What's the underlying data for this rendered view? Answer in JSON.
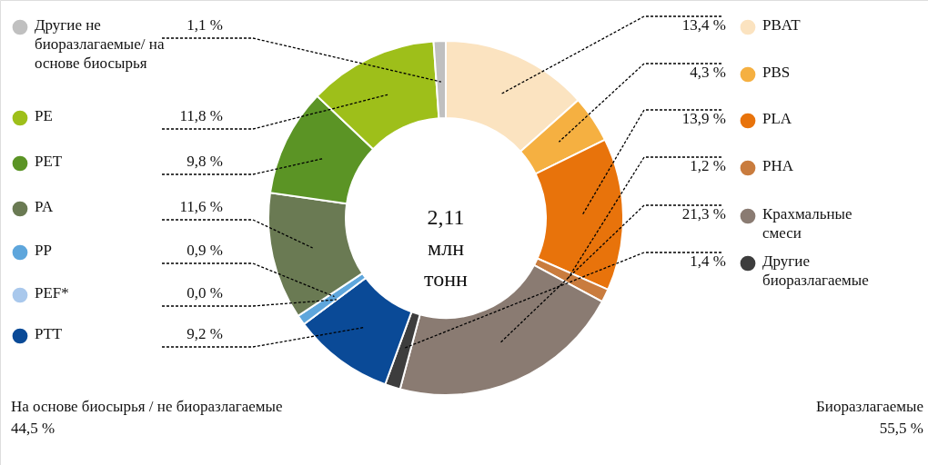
{
  "chart_data": {
    "type": "donut",
    "categories": [
      "PBAT",
      "PBS",
      "PLA",
      "PHA",
      "Крахмальные смеси",
      "Другие биоразлагаемые",
      "PTT",
      "PEF*",
      "PP",
      "PA",
      "PET",
      "PE",
      "Другие не биоразлагаемые/ на основе биосырья"
    ],
    "values": [
      13.4,
      4.3,
      13.9,
      1.2,
      21.3,
      1.4,
      9.2,
      0.0,
      0.9,
      11.6,
      9.8,
      11.8,
      1.1
    ],
    "value_labels": [
      "13,4 %",
      "4,3 %",
      "13,9 %",
      "1,2 %",
      "21,3 %",
      "1,4 %",
      "9,2 %",
      "0,0 %",
      "0,9 %",
      "11,6 %",
      "9,8 %",
      "11,8 %",
      "1,1 %"
    ],
    "colors": [
      "#fbe3c0",
      "#f5b041",
      "#e8730b",
      "#c97c3e",
      "#8a7b72",
      "#3d3d3d",
      "#0a4a97",
      "#a9c8ec",
      "#5ea6dc",
      "#6a7a53",
      "#5b9425",
      "#9ebf1a",
      "#c0c0c0"
    ],
    "legend": "left",
    "annotations": [
      "2,11 млн тонн",
      "На основе биосырья / не биоразлагаемые",
      "44,5 %",
      "Биоразлагаемые",
      "55,5 %"
    ]
  }
}
